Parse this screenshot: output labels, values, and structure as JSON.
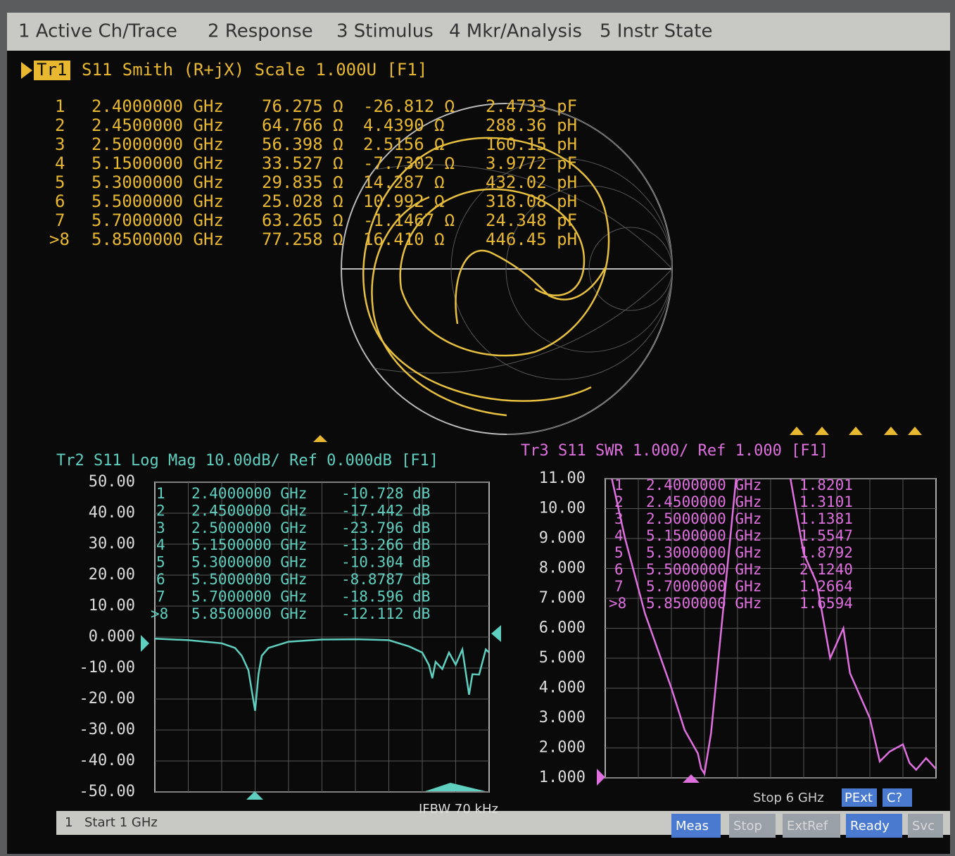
{
  "menu": [
    "1 Active Ch/Trace",
    "2 Response",
    "3 Stimulus",
    "4 Mkr/Analysis",
    "5 Instr State"
  ],
  "smith": {
    "trace_tag": "Tr1",
    "header": "S11 Smith (R+jX) Scale 1.000U [F1]",
    "markers": [
      [
        "1",
        "2.4000000 GHz",
        "76.275 Ω",
        "-26.812 Ω",
        "2.4733 pF"
      ],
      [
        "2",
        "2.4500000 GHz",
        "64.766 Ω",
        "4.4390 Ω",
        "288.36 pH"
      ],
      [
        "3",
        "2.5000000 GHz",
        "56.398 Ω",
        "2.5156 Ω",
        "160.15 pH"
      ],
      [
        "4",
        "5.1500000 GHz",
        "33.527 Ω",
        "-7.7302 Ω",
        "3.9772 pF"
      ],
      [
        "5",
        "5.3000000 GHz",
        "29.835 Ω",
        "14.287 Ω",
        "432.02 pH"
      ],
      [
        "6",
        "5.5000000 GHz",
        "25.028 Ω",
        "10.992 Ω",
        "318.08 pH"
      ],
      [
        "7",
        "5.7000000 GHz",
        "63.265 Ω",
        "-1.1467 Ω",
        "24.348 pF"
      ],
      [
        ">8",
        "5.8500000 GHz",
        "77.258 Ω",
        "16.410 Ω",
        "446.45 pH"
      ]
    ]
  },
  "chart_data": [
    {
      "type": "line",
      "title": "Tr2 S11 Log Mag 10.00dB/ Ref 0.000dB [F1]",
      "color": "#5fd0c0",
      "grid": true,
      "xlim": [
        1,
        6
      ],
      "ylim": [
        -50,
        50
      ],
      "yticks": [
        {
          "value": 50,
          "label": "50.00"
        },
        {
          "value": 40,
          "label": "40.00"
        },
        {
          "value": 30,
          "label": "30.00"
        },
        {
          "value": 20,
          "label": "20.00"
        },
        {
          "value": 10,
          "label": "10.00"
        },
        {
          "value": 0,
          "label": "0.000"
        },
        {
          "value": -10,
          "label": "-10.00"
        },
        {
          "value": -20,
          "label": "-20.00"
        },
        {
          "value": -30,
          "label": "-30.00"
        },
        {
          "value": -40,
          "label": "-40.00"
        },
        {
          "value": -50,
          "label": "-50.00"
        }
      ],
      "x": [
        1,
        1.5,
        2,
        2.2,
        2.3,
        2.4,
        2.45,
        2.5,
        2.55,
        2.6,
        2.7,
        3,
        3.5,
        4,
        4.5,
        4.8,
        5,
        5.1,
        5.15,
        5.2,
        5.3,
        5.4,
        5.5,
        5.6,
        5.7,
        5.75,
        5.85,
        5.95,
        6
      ],
      "values": [
        -0.5,
        -1,
        -2,
        -3.5,
        -6,
        -10.7,
        -17.4,
        -23.8,
        -12,
        -6,
        -3.5,
        -1.5,
        -0.8,
        -0.7,
        -1,
        -3,
        -5,
        -9,
        -13.3,
        -8,
        -10.3,
        -5,
        -8.9,
        -4,
        -18.6,
        -12,
        -12.1,
        -4,
        -5
      ],
      "markers": [
        [
          "1",
          "2.4000000 GHz",
          "-10.728 dB"
        ],
        [
          "2",
          "2.4500000 GHz",
          "-17.442 dB"
        ],
        [
          "3",
          "2.5000000 GHz",
          "-23.796 dB"
        ],
        [
          "4",
          "5.1500000 GHz",
          "-13.266 dB"
        ],
        [
          "5",
          "5.3000000 GHz",
          "-10.304 dB"
        ],
        [
          "6",
          "5.5000000 GHz",
          "-8.8787 dB"
        ],
        [
          "7",
          "5.7000000 GHz",
          "-18.596 dB"
        ],
        [
          ">8",
          "5.8500000 GHz",
          "-12.112 dB"
        ]
      ]
    },
    {
      "type": "line",
      "title": "Tr3 S11 SWR 1.000/ Ref 1.000 [F1]",
      "color": "#e070e0",
      "grid": true,
      "xlim": [
        1,
        6
      ],
      "ylim": [
        1,
        11
      ],
      "yticks": [
        {
          "value": 11,
          "label": "11.00"
        },
        {
          "value": 10,
          "label": "10.00"
        },
        {
          "value": 9,
          "label": "9.000"
        },
        {
          "value": 8,
          "label": "8.000"
        },
        {
          "value": 7,
          "label": "7.000"
        },
        {
          "value": 6,
          "label": "6.000"
        },
        {
          "value": 5,
          "label": "5.000"
        },
        {
          "value": 4,
          "label": "4.000"
        },
        {
          "value": 3,
          "label": "3.000"
        },
        {
          "value": 2,
          "label": "2.000"
        },
        {
          "value": 1,
          "label": "1.000"
        }
      ],
      "x": [
        1,
        1.3,
        1.6,
        2,
        2.2,
        2.4,
        2.45,
        2.5,
        2.6,
        2.8,
        3,
        3.2,
        3.5,
        3.8,
        4,
        4.2,
        4.4,
        4.5,
        4.6,
        4.7,
        4.8,
        5,
        5.15,
        5.3,
        5.5,
        5.6,
        5.7,
        5.85,
        6
      ],
      "values": [
        12,
        9,
        6.5,
        4,
        2.6,
        1.82,
        1.31,
        1.14,
        2.5,
        7,
        11.5,
        12,
        12,
        11,
        8.5,
        7.5,
        5,
        5.5,
        6,
        4.5,
        4,
        3,
        1.55,
        1.88,
        2.12,
        1.5,
        1.27,
        1.66,
        1.3
      ],
      "markers": [
        [
          "1",
          "2.4000000 GHz",
          "1.8201"
        ],
        [
          "2",
          "2.4500000 GHz",
          "1.3101"
        ],
        [
          "3",
          "2.5000000 GHz",
          "1.1381"
        ],
        [
          "4",
          "5.1500000 GHz",
          "1.5547"
        ],
        [
          "5",
          "5.3000000 GHz",
          "1.8792"
        ],
        [
          "6",
          "5.5000000 GHz",
          "2.1240"
        ],
        [
          "7",
          "5.7000000 GHz",
          "1.2664"
        ],
        [
          ">8",
          "5.8500000 GHz",
          "1.6594"
        ]
      ]
    }
  ],
  "status": {
    "channel": "1",
    "start": "Start 1 GHz",
    "ifbw": "IFBW 70 kHz",
    "stop": "Stop 6 GHz",
    "pext": "PExt",
    "cal": "C?",
    "keys": [
      "Meas",
      "Stop",
      "ExtRef",
      "Ready",
      "Svc"
    ]
  }
}
